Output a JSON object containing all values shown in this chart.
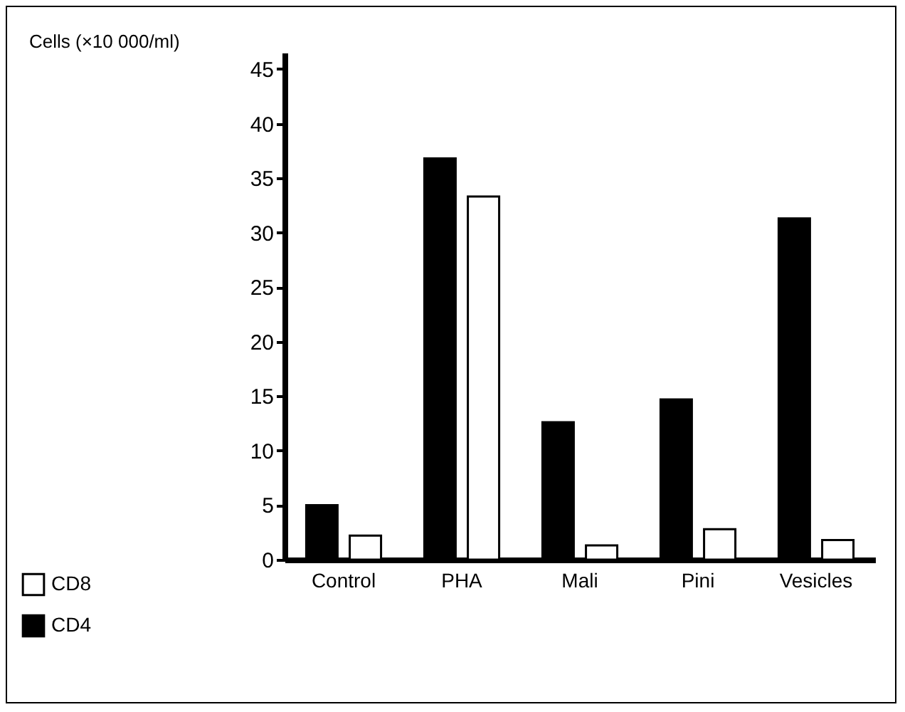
{
  "chart_data": {
    "type": "bar",
    "ylabel": "Cells (×10 000/ml)",
    "categories": [
      "Control",
      "PHA",
      "Mali",
      "Pini",
      "Vesicles"
    ],
    "series": [
      {
        "name": "CD8",
        "color": "#ffffff",
        "values": [
          2.2,
          33.3,
          1.3,
          2.8,
          1.8
        ]
      },
      {
        "name": "CD4",
        "color": "#000000",
        "values": [
          5.0,
          36.8,
          12.6,
          14.7,
          31.3
        ]
      }
    ],
    "ylim": [
      0,
      46.5
    ],
    "yticks": [
      0,
      5,
      10,
      15,
      20,
      25,
      30,
      35,
      40,
      45
    ],
    "grid": false,
    "legend": "bottom left"
  }
}
